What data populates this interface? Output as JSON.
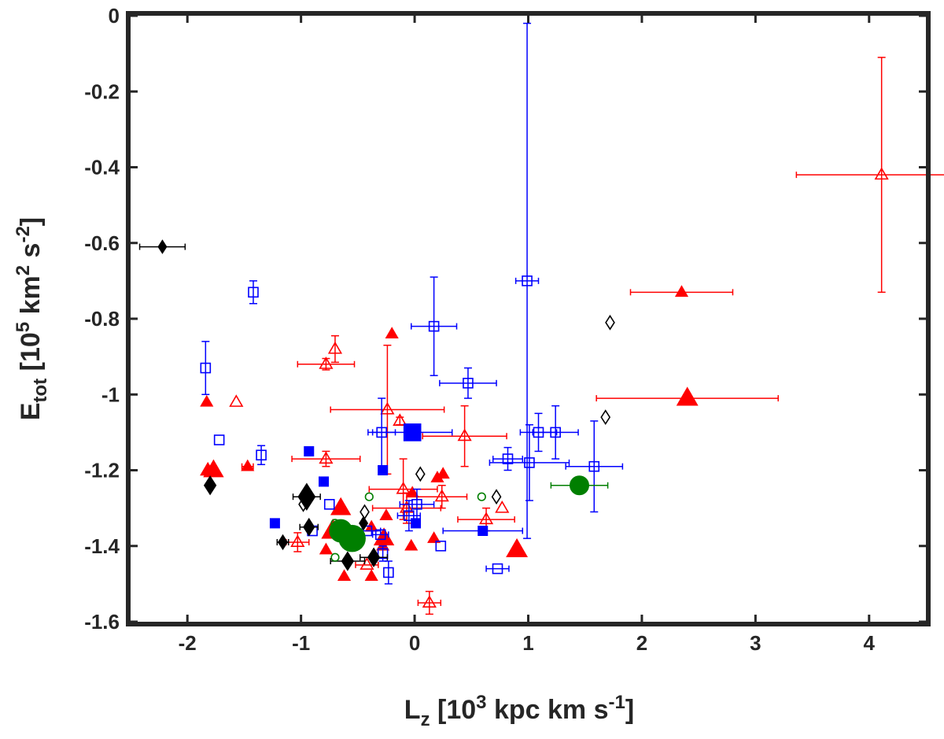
{
  "chart_data": {
    "type": "scatter",
    "title": "",
    "xlabel": "L",
    "xlabel_sub": "z",
    "xlabel_unit_pre": " [10",
    "xlabel_unit_sup": "3",
    "xlabel_unit_post": " kpc km s",
    "xlabel_unit_sup2": "-1",
    "xlabel_unit_end": "]",
    "ylabel": "E",
    "ylabel_sub": "tot",
    "ylabel_unit_pre": " [10",
    "ylabel_unit_sup": "5",
    "ylabel_unit_mid": " km",
    "ylabel_unit_sup2": "2",
    "ylabel_unit_mid2": " s",
    "ylabel_unit_sup3": "-2",
    "ylabel_unit_end": "]",
    "xlim": [
      -2.5,
      4.5
    ],
    "ylim": [
      -1.6,
      0
    ],
    "xticks": [
      -2,
      -1,
      0,
      1,
      2,
      3,
      4
    ],
    "xtick_labels": [
      "-2",
      "-1",
      "0",
      "1",
      "2",
      "3",
      "4"
    ],
    "yticks": [
      0,
      -0.2,
      -0.4,
      -0.6,
      -0.8,
      -1,
      -1.2,
      -1.4,
      -1.6
    ],
    "ytick_labels": [
      "0",
      "-0.2",
      "-0.4",
      "-0.6",
      "-0.8",
      "-1",
      "-1.2",
      "-1.4",
      "-1.6"
    ],
    "grid": false,
    "colors": {
      "red": "#ff0000",
      "blue": "#0000ff",
      "black": "#000000",
      "green": "#007f00",
      "axis": "#262626"
    },
    "series": [
      {
        "name": "red open triangles",
        "marker": "triangle",
        "filled": false,
        "color": "#ff0000",
        "points": [
          {
            "x": 4.11,
            "y": -0.42,
            "xerr": 0.75,
            "yerr": 0.31,
            "s": 1
          },
          {
            "x": -0.7,
            "y": -0.88,
            "yerr": 0.035,
            "s": 1
          },
          {
            "x": -0.78,
            "y": -0.92,
            "xerr": 0.25,
            "yerr": 0.015,
            "s": 1
          },
          {
            "x": -1.57,
            "y": -1.02,
            "s": 1
          },
          {
            "x": -0.24,
            "y": -1.04,
            "xerr": 0.5,
            "yerr": 0.17,
            "s": 1
          },
          {
            "x": -0.13,
            "y": -1.07,
            "yerr": 0.01,
            "s": 1
          },
          {
            "x": 0.44,
            "y": -1.11,
            "xerr": 0.37,
            "yerr": 0.08,
            "s": 1
          },
          {
            "x": -0.78,
            "y": -1.17,
            "xerr": 0.3,
            "yerr": 0.02,
            "s": 1
          },
          {
            "x": -0.1,
            "y": -1.25,
            "xerr": 0.3,
            "yerr": 0.08,
            "s": 1
          },
          {
            "x": 0.24,
            "y": -1.27,
            "xerr": 0.22,
            "yerr": 0.03,
            "s": 1
          },
          {
            "x": -0.07,
            "y": -1.3,
            "xerr": 0.3,
            "yerr": 0.04,
            "s": 1
          },
          {
            "x": 0.63,
            "y": -1.33,
            "xerr": 0.25,
            "yerr": 0.03,
            "s": 1
          },
          {
            "x": 0.77,
            "y": -1.3,
            "s": 1
          },
          {
            "x": -1.03,
            "y": -1.39,
            "xerr": 0.1,
            "yerr": 0.025,
            "s": 1
          },
          {
            "x": -0.42,
            "y": -1.45,
            "xerr": 0.1,
            "s": 1
          },
          {
            "x": 0.13,
            "y": -1.55,
            "xerr": 0.1,
            "yerr": 0.03,
            "s": 1
          }
        ]
      },
      {
        "name": "red filled triangles",
        "marker": "triangle",
        "filled": true,
        "color": "#ff0000",
        "points": [
          {
            "x": 2.35,
            "y": -0.73,
            "xerr": 0.45,
            "s": 1
          },
          {
            "x": 2.4,
            "y": -1.01,
            "xerr": 0.8,
            "s": 1.7
          },
          {
            "x": -0.2,
            "y": -0.84,
            "s": 1
          },
          {
            "x": -1.83,
            "y": -1.02,
            "s": 1
          },
          {
            "x": -1.82,
            "y": -1.2,
            "s": 1.2
          },
          {
            "x": -1.77,
            "y": -1.2,
            "s": 1.6
          },
          {
            "x": -1.47,
            "y": -1.19,
            "xerr": 0.05,
            "s": 1
          },
          {
            "x": 0.25,
            "y": -1.21,
            "s": 1
          },
          {
            "x": 0.2,
            "y": -1.22,
            "s": 1
          },
          {
            "x": -0.65,
            "y": -1.3,
            "s": 1.6
          },
          {
            "x": -0.25,
            "y": -1.32,
            "s": 1
          },
          {
            "x": -0.72,
            "y": -1.36,
            "s": 1.8
          },
          {
            "x": -0.27,
            "y": -1.38,
            "s": 1.6
          },
          {
            "x": -0.38,
            "y": -1.35,
            "s": 1
          },
          {
            "x": -0.28,
            "y": -1.4,
            "s": 1
          },
          {
            "x": 0.17,
            "y": -1.38,
            "s": 1
          },
          {
            "x": 0.9,
            "y": -1.41,
            "s": 1.7
          },
          {
            "x": -0.78,
            "y": -1.41,
            "s": 1
          },
          {
            "x": -0.62,
            "y": -1.48,
            "s": 1
          },
          {
            "x": -0.38,
            "y": -1.48,
            "s": 1
          },
          {
            "x": -0.03,
            "y": -1.4,
            "s": 1
          },
          {
            "x": -0.02,
            "y": -1.26,
            "s": 1
          }
        ]
      },
      {
        "name": "blue open squares",
        "marker": "square",
        "filled": false,
        "color": "#0000ff",
        "points": [
          {
            "x": 0.99,
            "y": -0.7,
            "xerr": 0.1,
            "yerr": 0.68,
            "s": 1
          },
          {
            "x": -1.42,
            "y": -0.73,
            "yerr": 0.03,
            "s": 1
          },
          {
            "x": -1.84,
            "y": -0.93,
            "yerr": 0.07,
            "s": 1
          },
          {
            "x": 0.17,
            "y": -0.82,
            "xerr": 0.2,
            "yerr": 0.13,
            "s": 1
          },
          {
            "x": 0.47,
            "y": -0.97,
            "xerr": 0.25,
            "yerr": 0.04,
            "s": 1
          },
          {
            "x": -0.29,
            "y": -1.1,
            "xerr": 0.12,
            "yerr": 0.09,
            "s": 1
          },
          {
            "x": 1.09,
            "y": -1.1,
            "xerr": 0.16,
            "yerr": 0.05,
            "s": 1
          },
          {
            "x": 1.24,
            "y": -1.1,
            "xerr": 0.2,
            "yerr": 0.07,
            "s": 1
          },
          {
            "x": -1.72,
            "y": -1.12,
            "s": 1
          },
          {
            "x": -1.35,
            "y": -1.16,
            "yerr": 0.025,
            "s": 1
          },
          {
            "x": 0.82,
            "y": -1.17,
            "xerr": 0.13,
            "yerr": 0.03,
            "s": 1
          },
          {
            "x": 1.01,
            "y": -1.18,
            "xerr": 0.35,
            "yerr": 0.1,
            "s": 1
          },
          {
            "x": 1.58,
            "y": -1.19,
            "xerr": 0.25,
            "yerr": 0.12,
            "s": 1
          },
          {
            "x": -0.75,
            "y": -1.29,
            "s": 1
          },
          {
            "x": 0.02,
            "y": -1.29,
            "xerr": 0.15,
            "yerr": 0.04,
            "s": 1
          },
          {
            "x": -0.05,
            "y": -1.32,
            "xerr": 0.1,
            "yerr": 0.04,
            "s": 1
          },
          {
            "x": -0.42,
            "y": -1.36,
            "xerr": 0.12,
            "s": 1
          },
          {
            "x": -0.3,
            "y": -1.37,
            "xerr": 0.07,
            "s": 1
          },
          {
            "x": -0.23,
            "y": -1.47,
            "yerr": 0.03,
            "s": 1
          },
          {
            "x": 0.73,
            "y": -1.46,
            "xerr": 0.1,
            "s": 1
          },
          {
            "x": 0.23,
            "y": -1.4,
            "s": 1
          },
          {
            "x": -0.28,
            "y": -1.42,
            "yerr": 0.02,
            "s": 1
          },
          {
            "x": -0.9,
            "y": -1.36,
            "s": 1
          }
        ]
      },
      {
        "name": "blue filled squares",
        "marker": "square",
        "filled": true,
        "color": "#0000ff",
        "points": [
          {
            "x": -0.02,
            "y": -1.1,
            "xerr": 0.35,
            "s": 1.8
          },
          {
            "x": -0.93,
            "y": -1.15,
            "s": 1
          },
          {
            "x": -0.8,
            "y": -1.23,
            "s": 1
          },
          {
            "x": -0.28,
            "y": -1.2,
            "s": 1
          },
          {
            "x": -1.23,
            "y": -1.34,
            "s": 1
          },
          {
            "x": 0.01,
            "y": -1.34,
            "s": 1
          },
          {
            "x": 0.6,
            "y": -1.36,
            "xerr": 0.35,
            "s": 1
          },
          {
            "x": -0.55,
            "y": -1.37,
            "s": 1
          }
        ]
      },
      {
        "name": "black open diamonds",
        "marker": "diamond",
        "filled": false,
        "color": "#000000",
        "points": [
          {
            "x": 1.72,
            "y": -0.81,
            "s": 1
          },
          {
            "x": 1.68,
            "y": -1.06,
            "s": 1
          },
          {
            "x": 0.05,
            "y": -1.21,
            "s": 1
          },
          {
            "x": -0.98,
            "y": -1.29,
            "s": 1
          },
          {
            "x": 0.72,
            "y": -1.27,
            "s": 1
          },
          {
            "x": -0.44,
            "y": -1.31,
            "s": 1
          }
        ]
      },
      {
        "name": "black filled diamonds",
        "marker": "diamond",
        "filled": true,
        "color": "#000000",
        "points": [
          {
            "x": -2.22,
            "y": -0.61,
            "xerr": 0.2,
            "s": 1
          },
          {
            "x": -1.8,
            "y": -1.24,
            "s": 1.4
          },
          {
            "x": -0.95,
            "y": -1.27,
            "xerr": 0.12,
            "s": 2
          },
          {
            "x": -0.93,
            "y": -1.35,
            "xerr": 0.08,
            "s": 1.3
          },
          {
            "x": -1.16,
            "y": -1.39,
            "xerr": 0.05,
            "s": 1.1
          },
          {
            "x": -0.59,
            "y": -1.44,
            "xerr": 0.15,
            "s": 1.4
          },
          {
            "x": -0.36,
            "y": -1.43,
            "xerr": 0.12,
            "s": 1.4
          },
          {
            "x": -0.45,
            "y": -1.34,
            "s": 1
          }
        ]
      },
      {
        "name": "green open circles",
        "marker": "circle",
        "filled": false,
        "color": "#007f00",
        "points": [
          {
            "x": -0.4,
            "y": -1.27,
            "s": 1
          },
          {
            "x": 0.59,
            "y": -1.27,
            "s": 1
          },
          {
            "x": -0.7,
            "y": -1.34,
            "s": 1
          },
          {
            "x": -0.7,
            "y": -1.43,
            "s": 1
          }
        ]
      },
      {
        "name": "green filled circles",
        "marker": "circle",
        "filled": true,
        "color": "#007f00",
        "points": [
          {
            "x": 1.45,
            "y": -1.24,
            "xerr": 0.25,
            "s": 1
          },
          {
            "x": -0.65,
            "y": -1.36,
            "s": 1.2
          },
          {
            "x": -0.55,
            "y": -1.38,
            "s": 1.4
          }
        ]
      }
    ]
  }
}
